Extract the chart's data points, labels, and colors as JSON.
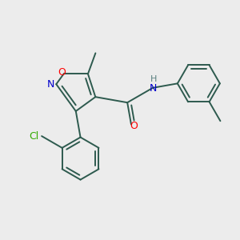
{
  "bg_color": "#ececec",
  "bond_color": "#2d5a4e",
  "o_color": "#ff0000",
  "n_color": "#0000cc",
  "cl_color": "#33aa00",
  "h_color": "#5a8080",
  "figsize": [
    3.0,
    3.0
  ],
  "dpi": 100,
  "xlim": [
    -2.5,
    5.5
  ],
  "ylim": [
    -3.5,
    2.5
  ]
}
